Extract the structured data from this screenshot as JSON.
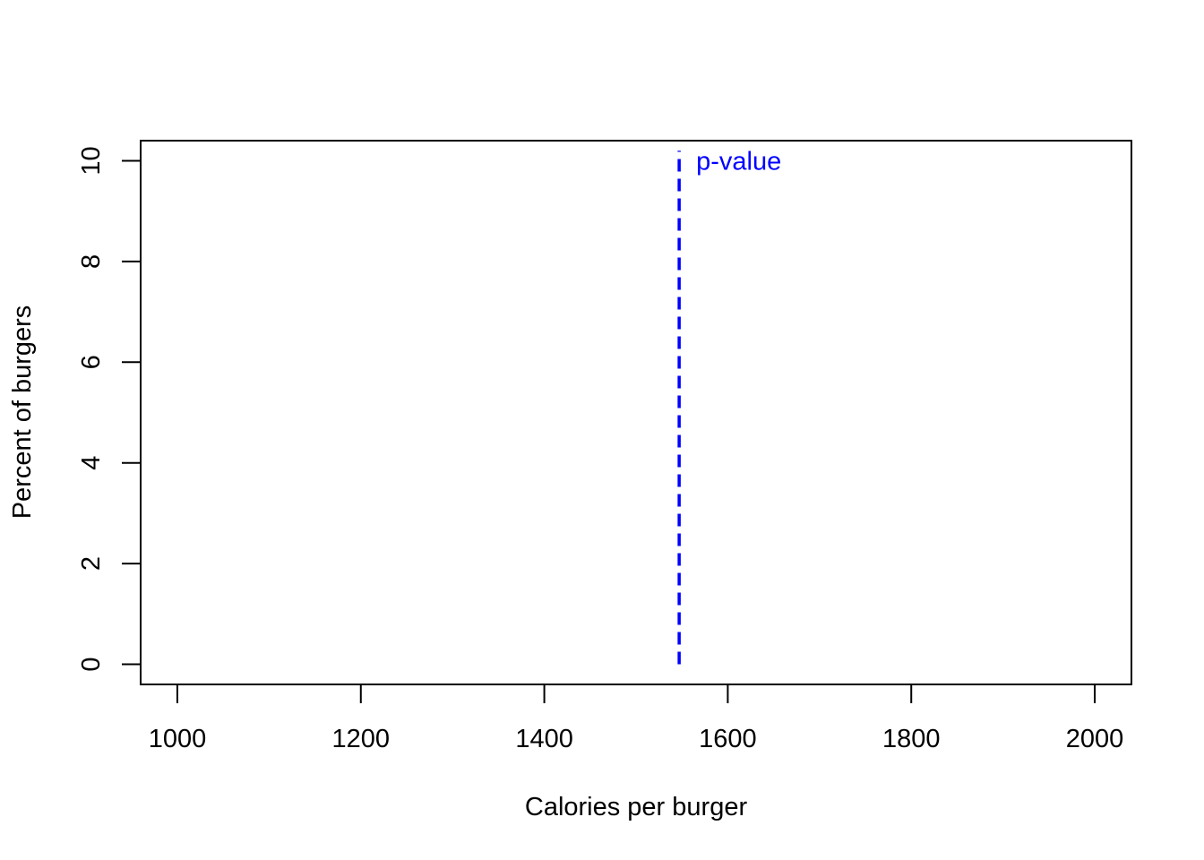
{
  "chart_data": {
    "type": "line",
    "title": "",
    "xlabel": "Calories per burger",
    "ylabel": "Percent of burgers",
    "xlim": [
      960,
      2040
    ],
    "ylim": [
      -0.4,
      10.4
    ],
    "x_ticks": [
      1000,
      1200,
      1400,
      1600,
      1800,
      2000
    ],
    "x_tick_labels": [
      "1000",
      "1200",
      "1400",
      "1600",
      "1800",
      "2000"
    ],
    "y_ticks": [
      0,
      2,
      4,
      6,
      8,
      10
    ],
    "y_tick_labels": [
      "0",
      "2",
      "4",
      "6",
      "8",
      "10"
    ],
    "grid": false,
    "series": [],
    "reference_line": {
      "orientation": "vertical",
      "x": 1547,
      "y_range": [
        0,
        10.2
      ],
      "style": "dashed",
      "color": "#0000ff",
      "label": "p-value",
      "label_y": 10
    }
  }
}
